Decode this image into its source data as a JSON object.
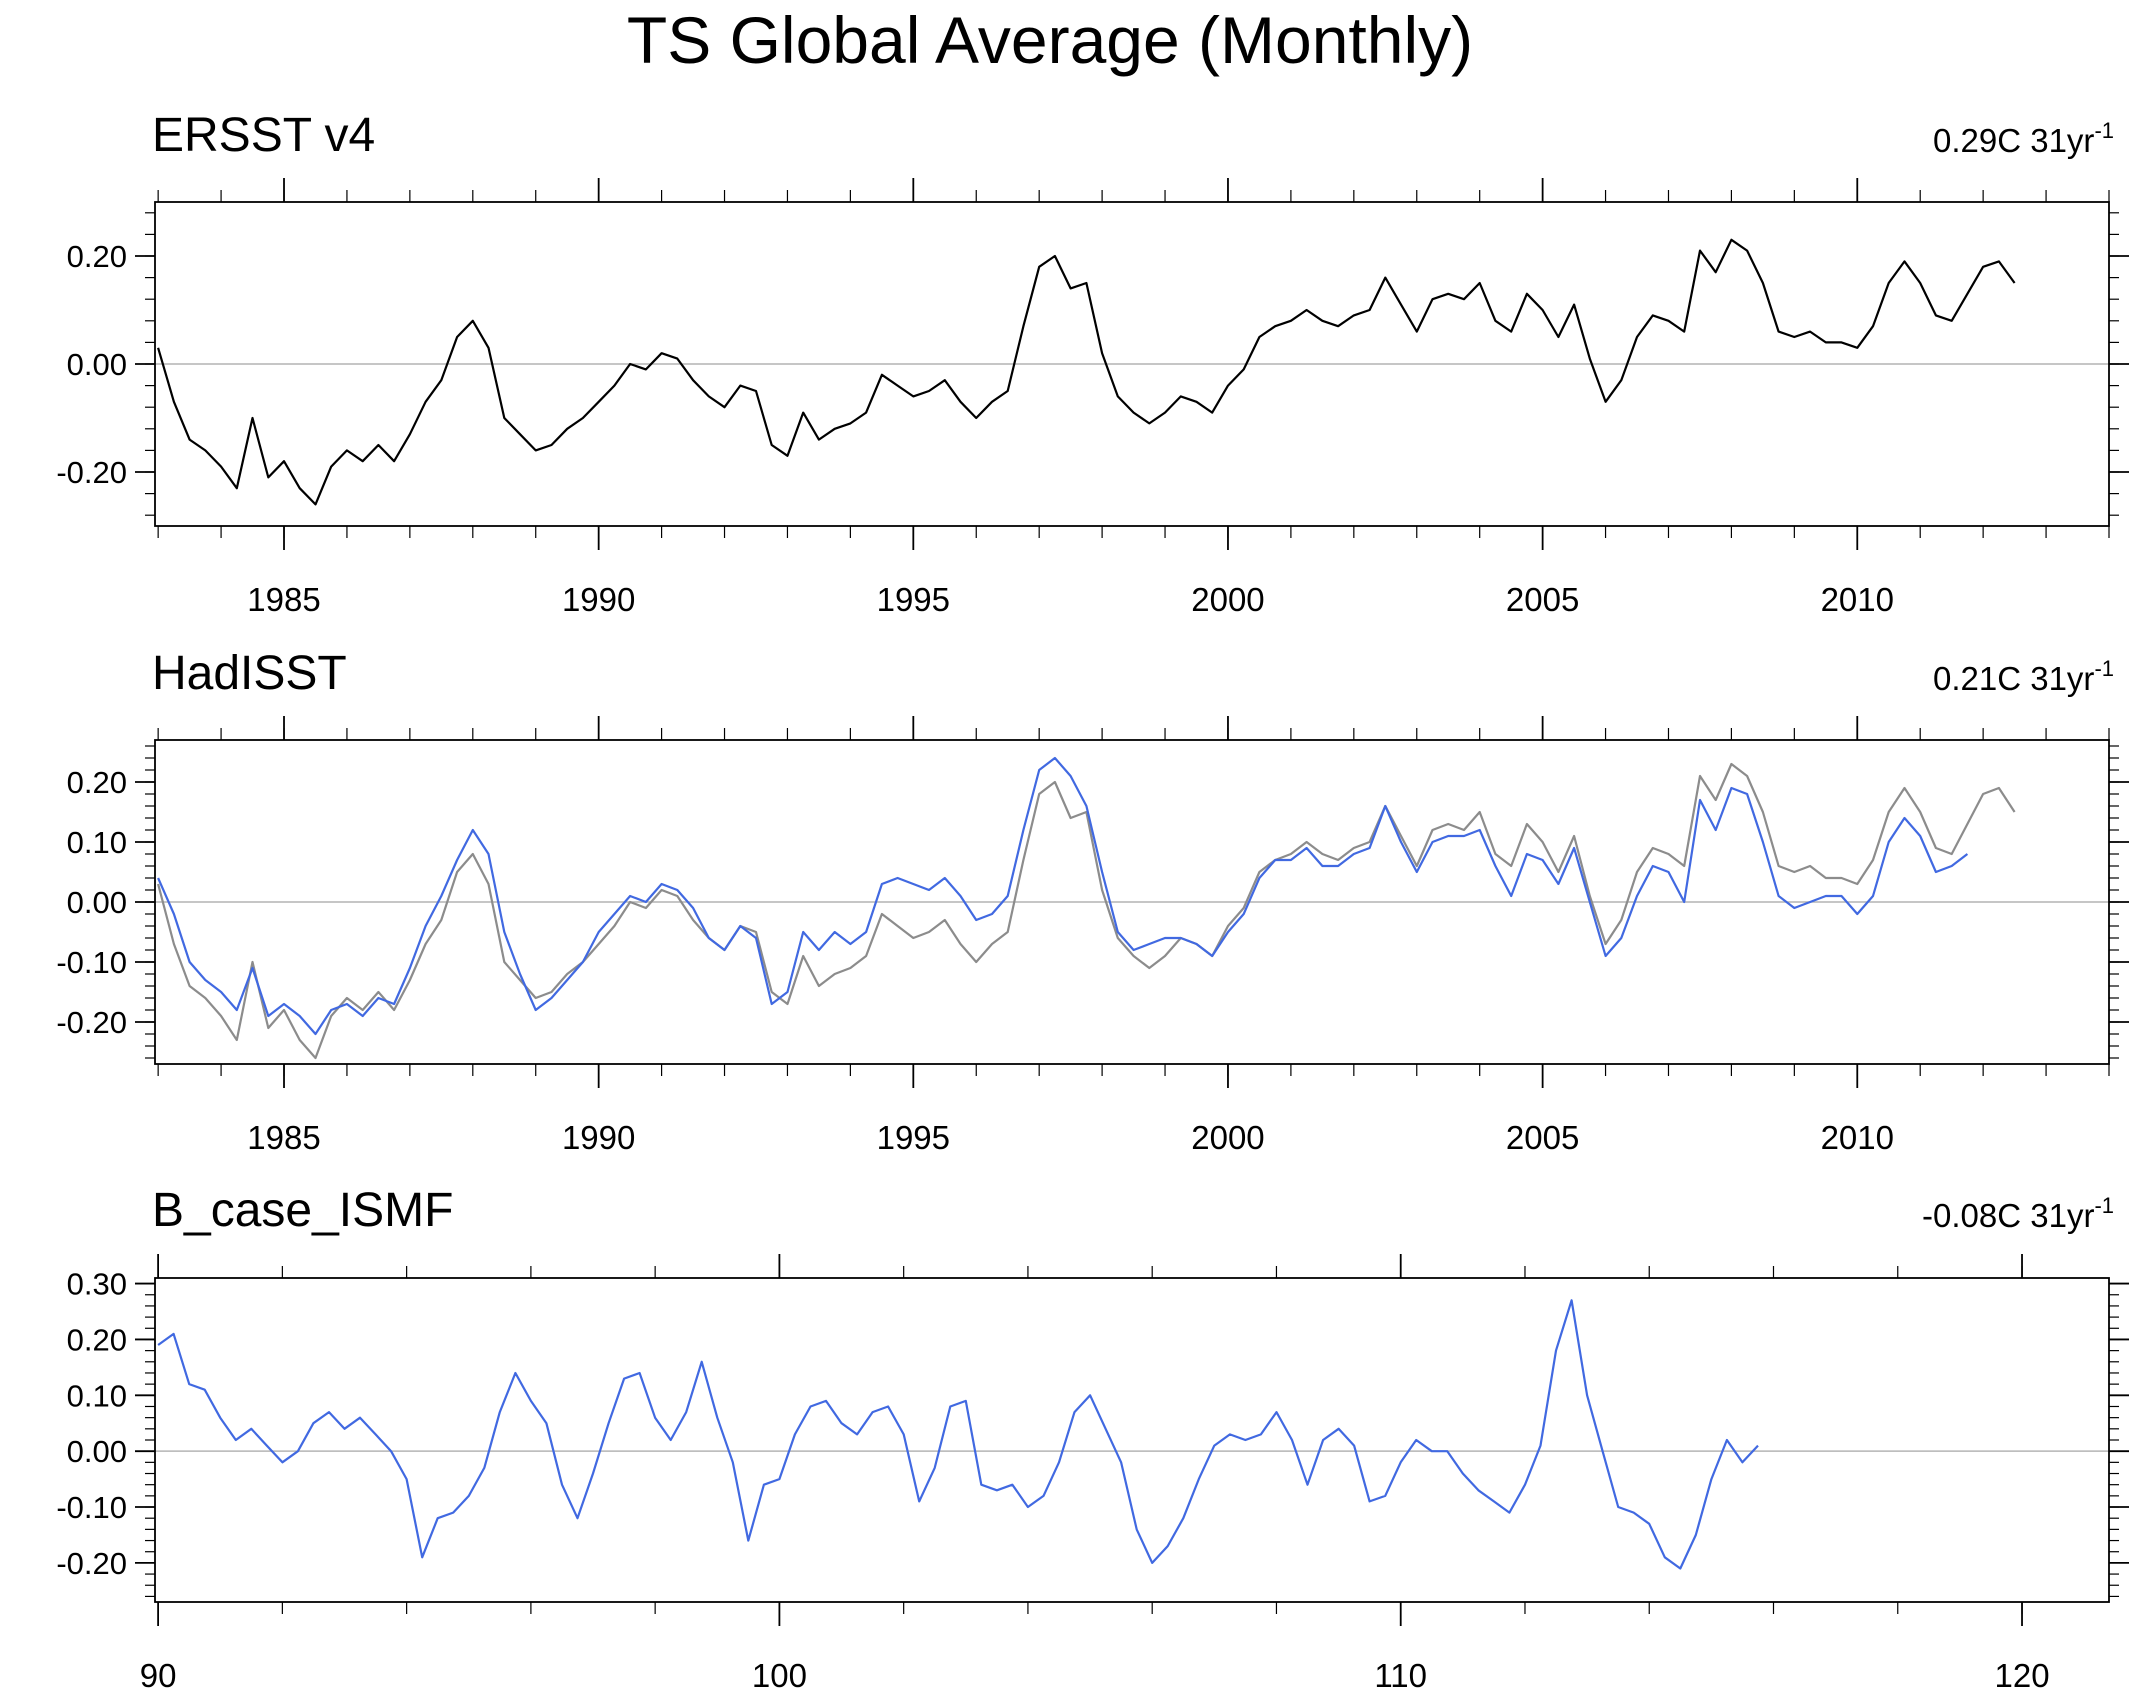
{
  "title": "TS Global Average (Monthly)",
  "chart_data": [
    {
      "type": "line",
      "title": "ERSST v4",
      "trend_value": "0.29C 31yr",
      "trend_exp": "-1",
      "x_range": [
        1982.95,
        2014.0
      ],
      "ylim": [
        -0.3,
        0.3
      ],
      "y_ticks": [
        -0.2,
        0.0,
        0.2
      ],
      "y_tick_labels": [
        "-0.20",
        "0.00",
        "0.20"
      ],
      "x_ticks": [
        1985,
        1990,
        1995,
        2000,
        2005,
        2010
      ],
      "x_tick_labels": [
        "1985",
        "1990",
        "1995",
        "2000",
        "2005",
        "2010"
      ],
      "colors": {
        "ersst": "#000000",
        "hadisst": "#4169e1",
        "reference": "#8c8c8c",
        "zero_line": "#b4b4b4"
      },
      "series": [
        {
          "name": "ERSST v4",
          "role": "ersst",
          "x_start": 1983.0,
          "x_step": 0.25,
          "values": [
            0.03,
            -0.07,
            -0.14,
            -0.16,
            -0.19,
            -0.23,
            -0.1,
            -0.21,
            -0.18,
            -0.23,
            -0.26,
            -0.19,
            -0.16,
            -0.18,
            -0.15,
            -0.18,
            -0.13,
            -0.07,
            -0.03,
            0.05,
            0.08,
            0.03,
            -0.1,
            -0.13,
            -0.16,
            -0.15,
            -0.12,
            -0.1,
            -0.07,
            -0.04,
            0.0,
            -0.01,
            0.02,
            0.01,
            -0.03,
            -0.06,
            -0.08,
            -0.04,
            -0.05,
            -0.15,
            -0.17,
            -0.09,
            -0.14,
            -0.12,
            -0.11,
            -0.09,
            -0.02,
            -0.04,
            -0.06,
            -0.05,
            -0.03,
            -0.07,
            -0.1,
            -0.07,
            -0.05,
            0.07,
            0.18,
            0.2,
            0.14,
            0.15,
            0.02,
            -0.06,
            -0.09,
            -0.11,
            -0.09,
            -0.06,
            -0.07,
            -0.09,
            -0.04,
            -0.01,
            0.05,
            0.07,
            0.08,
            0.1,
            0.08,
            0.07,
            0.09,
            0.1,
            0.16,
            0.11,
            0.06,
            0.12,
            0.13,
            0.12,
            0.15,
            0.08,
            0.06,
            0.13,
            0.1,
            0.05,
            0.11,
            0.01,
            -0.07,
            -0.03,
            0.05,
            0.09,
            0.08,
            0.06,
            0.21,
            0.17,
            0.23,
            0.21,
            0.15,
            0.06,
            0.05,
            0.06,
            0.04,
            0.04,
            0.03,
            0.07,
            0.15,
            0.19,
            0.15,
            0.09,
            0.08,
            0.13,
            0.18,
            0.19,
            0.15
          ]
        }
      ]
    },
    {
      "type": "line",
      "title": "HadISST",
      "trend_value": "0.21C 31yr",
      "trend_exp": "-1",
      "x_range": [
        1982.95,
        2014.0
      ],
      "ylim": [
        -0.27,
        0.27
      ],
      "y_ticks": [
        -0.2,
        -0.1,
        0.0,
        0.1,
        0.2
      ],
      "y_tick_labels": [
        "-0.20",
        "-0.10",
        "0.00",
        "0.10",
        "0.20"
      ],
      "x_ticks": [
        1985,
        1990,
        1995,
        2000,
        2005,
        2010
      ],
      "x_tick_labels": [
        "1985",
        "1990",
        "1995",
        "2000",
        "2005",
        "2010"
      ],
      "series": [
        {
          "name": "ERSST v4 (reference)",
          "role": "reference",
          "x_start": 1983.0,
          "x_step": 0.25,
          "values": [
            0.03,
            -0.07,
            -0.14,
            -0.16,
            -0.19,
            -0.23,
            -0.1,
            -0.21,
            -0.18,
            -0.23,
            -0.26,
            -0.19,
            -0.16,
            -0.18,
            -0.15,
            -0.18,
            -0.13,
            -0.07,
            -0.03,
            0.05,
            0.08,
            0.03,
            -0.1,
            -0.13,
            -0.16,
            -0.15,
            -0.12,
            -0.1,
            -0.07,
            -0.04,
            0.0,
            -0.01,
            0.02,
            0.01,
            -0.03,
            -0.06,
            -0.08,
            -0.04,
            -0.05,
            -0.15,
            -0.17,
            -0.09,
            -0.14,
            -0.12,
            -0.11,
            -0.09,
            -0.02,
            -0.04,
            -0.06,
            -0.05,
            -0.03,
            -0.07,
            -0.1,
            -0.07,
            -0.05,
            0.07,
            0.18,
            0.2,
            0.14,
            0.15,
            0.02,
            -0.06,
            -0.09,
            -0.11,
            -0.09,
            -0.06,
            -0.07,
            -0.09,
            -0.04,
            -0.01,
            0.05,
            0.07,
            0.08,
            0.1,
            0.08,
            0.07,
            0.09,
            0.1,
            0.16,
            0.11,
            0.06,
            0.12,
            0.13,
            0.12,
            0.15,
            0.08,
            0.06,
            0.13,
            0.1,
            0.05,
            0.11,
            0.01,
            -0.07,
            -0.03,
            0.05,
            0.09,
            0.08,
            0.06,
            0.21,
            0.17,
            0.23,
            0.21,
            0.15,
            0.06,
            0.05,
            0.06,
            0.04,
            0.04,
            0.03,
            0.07,
            0.15,
            0.19,
            0.15,
            0.09,
            0.08,
            0.13,
            0.18,
            0.19,
            0.15
          ]
        },
        {
          "name": "HadISST",
          "role": "hadisst",
          "x_start": 1983.0,
          "x_step": 0.25,
          "values": [
            0.04,
            -0.02,
            -0.1,
            -0.13,
            -0.15,
            -0.18,
            -0.11,
            -0.19,
            -0.17,
            -0.19,
            -0.22,
            -0.18,
            -0.17,
            -0.19,
            -0.16,
            -0.17,
            -0.11,
            -0.04,
            0.01,
            0.07,
            0.12,
            0.08,
            -0.05,
            -0.12,
            -0.18,
            -0.16,
            -0.13,
            -0.1,
            -0.05,
            -0.02,
            0.01,
            0.0,
            0.03,
            0.02,
            -0.01,
            -0.06,
            -0.08,
            -0.04,
            -0.06,
            -0.17,
            -0.15,
            -0.05,
            -0.08,
            -0.05,
            -0.07,
            -0.05,
            0.03,
            0.04,
            0.03,
            0.02,
            0.04,
            0.01,
            -0.03,
            -0.02,
            0.01,
            0.12,
            0.22,
            0.24,
            0.21,
            0.16,
            0.05,
            -0.05,
            -0.08,
            -0.07,
            -0.06,
            -0.06,
            -0.07,
            -0.09,
            -0.05,
            -0.02,
            0.04,
            0.07,
            0.07,
            0.09,
            0.06,
            0.06,
            0.08,
            0.09,
            0.16,
            0.1,
            0.05,
            0.1,
            0.11,
            0.11,
            0.12,
            0.06,
            0.01,
            0.08,
            0.07,
            0.03,
            0.09,
            0.0,
            -0.09,
            -0.06,
            0.01,
            0.06,
            0.05,
            0.0,
            0.17,
            0.12,
            0.19,
            0.18,
            0.1,
            0.01,
            -0.01,
            0.0,
            0.01,
            0.01,
            -0.02,
            0.01,
            0.1,
            0.14,
            0.11,
            0.05,
            0.06,
            0.08
          ]
        }
      ]
    },
    {
      "type": "line",
      "title": "B_case_ISMF",
      "trend_value": "-0.08C 31yr",
      "trend_exp": "-1",
      "x_range": [
        89.95,
        121.4
      ],
      "ylim": [
        -0.27,
        0.31
      ],
      "y_ticks": [
        -0.2,
        -0.1,
        0.0,
        0.1,
        0.2,
        0.3
      ],
      "y_tick_labels": [
        "-0.20",
        "-0.10",
        "0.00",
        "0.10",
        "0.20",
        "0.30"
      ],
      "x_ticks": [
        90,
        100,
        110,
        120
      ],
      "x_tick_labels": [
        "90",
        "100",
        "110",
        "120"
      ],
      "series": [
        {
          "name": "B_case_ISMF",
          "role": "hadisst",
          "x_start": 90.0,
          "x_step": 0.25,
          "values": [
            0.19,
            0.21,
            0.12,
            0.11,
            0.06,
            0.02,
            0.04,
            0.01,
            -0.02,
            0.0,
            0.05,
            0.07,
            0.04,
            0.06,
            0.03,
            0.0,
            -0.05,
            -0.19,
            -0.12,
            -0.11,
            -0.08,
            -0.03,
            0.07,
            0.14,
            0.09,
            0.05,
            -0.06,
            -0.12,
            -0.04,
            0.05,
            0.13,
            0.14,
            0.06,
            0.02,
            0.07,
            0.16,
            0.06,
            -0.02,
            -0.16,
            -0.06,
            -0.05,
            0.03,
            0.08,
            0.09,
            0.05,
            0.03,
            0.07,
            0.08,
            0.03,
            -0.09,
            -0.03,
            0.08,
            0.09,
            -0.06,
            -0.07,
            -0.06,
            -0.1,
            -0.08,
            -0.02,
            0.07,
            0.1,
            0.04,
            -0.02,
            -0.14,
            -0.2,
            -0.17,
            -0.12,
            -0.05,
            0.01,
            0.03,
            0.02,
            0.03,
            0.07,
            0.02,
            -0.06,
            0.02,
            0.04,
            0.01,
            -0.09,
            -0.08,
            -0.02,
            0.02,
            0.0,
            0.0,
            -0.04,
            -0.07,
            -0.09,
            -0.11,
            -0.06,
            0.01,
            0.18,
            0.27,
            0.1,
            0.0,
            -0.1,
            -0.11,
            -0.13,
            -0.19,
            -0.21,
            -0.15,
            -0.05,
            0.02,
            -0.02,
            0.01
          ]
        }
      ]
    }
  ]
}
